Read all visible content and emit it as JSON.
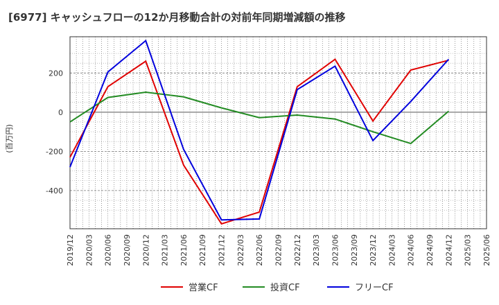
{
  "chart_data": {
    "type": "line",
    "title": "[6977]  キャッシュフローの12か月移動合計の対前年同期増減額の推移",
    "ylabel": "(百万円)",
    "xlabel": "",
    "ylim": [
      -595,
      385
    ],
    "yticks": [
      200,
      0,
      -200,
      -400
    ],
    "ytick_labels": [
      "200",
      "0",
      "-200",
      "-400"
    ],
    "categories": [
      "2019/12",
      "2020/03",
      "2020/06",
      "2020/09",
      "2020/12",
      "2021/03",
      "2021/06",
      "2021/09",
      "2021/12",
      "2022/03",
      "2022/06",
      "2022/09",
      "2022/12",
      "2023/03",
      "2023/06",
      "2023/09",
      "2023/12",
      "2024/03",
      "2024/06",
      "2024/09",
      "2024/12",
      "2025/03",
      "2025/06"
    ],
    "grid": true,
    "legend_position": "bottom",
    "series": [
      {
        "name": "営業CF",
        "color": "#e00000",
        "values": [
          -230,
          null,
          130,
          null,
          260,
          null,
          -270,
          null,
          -570,
          null,
          -510,
          null,
          130,
          null,
          270,
          null,
          -45,
          null,
          215,
          null,
          265,
          null,
          null
        ]
      },
      {
        "name": "投資CF",
        "color": "#228b22",
        "values": [
          -50,
          null,
          75,
          null,
          102,
          null,
          78,
          null,
          22,
          null,
          -28,
          null,
          -15,
          null,
          -35,
          null,
          -100,
          null,
          -160,
          null,
          5,
          null,
          null
        ]
      },
      {
        "name": "フリーCF",
        "color": "#0000dd",
        "values": [
          -280,
          null,
          205,
          null,
          365,
          null,
          -190,
          null,
          -550,
          null,
          -545,
          null,
          115,
          null,
          235,
          null,
          -145,
          null,
          55,
          null,
          270,
          null,
          null
        ]
      }
    ]
  }
}
